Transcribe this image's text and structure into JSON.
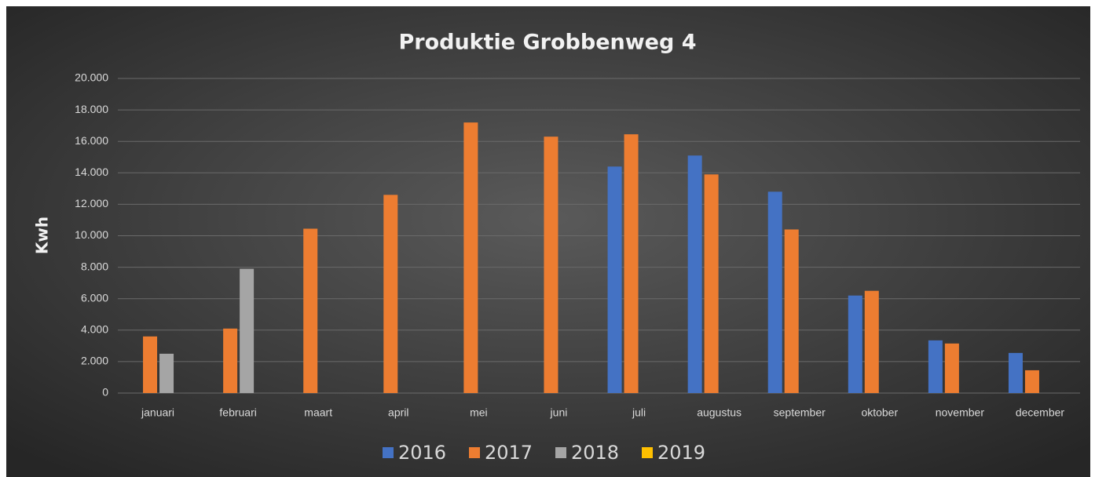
{
  "chart_data": {
    "type": "bar",
    "title": "Produktie Grobbenweg 4",
    "y_label": "Kwh",
    "categories": [
      "januari",
      "februari",
      "maart",
      "april",
      "mei",
      "juni",
      "juli",
      "augustus",
      "september",
      "oktober",
      "november",
      "december"
    ],
    "series": [
      {
        "name": "2016",
        "color": "#4472c4",
        "values": [
          null,
          null,
          null,
          null,
          null,
          null,
          14400,
          15100,
          12800,
          6200,
          3350,
          2550
        ]
      },
      {
        "name": "2017",
        "color": "#ed7d31",
        "values": [
          3600,
          4100,
          10450,
          12600,
          17200,
          16300,
          16450,
          13900,
          10400,
          6500,
          3150,
          1450
        ]
      },
      {
        "name": "2018",
        "color": "#a5a5a5",
        "values": [
          2500,
          7900,
          null,
          null,
          null,
          null,
          null,
          null,
          null,
          null,
          null,
          null
        ]
      },
      {
        "name": "2019",
        "color": "#ffc000",
        "values": [
          null,
          null,
          null,
          null,
          null,
          null,
          null,
          null,
          null,
          null,
          null,
          null
        ]
      }
    ],
    "ylim": [
      0,
      20000
    ],
    "yticks": [
      0,
      {
        "value": 2000,
        "label": "2.000"
      },
      {
        "value": 4000,
        "label": "4.000"
      },
      {
        "value": 6000,
        "label": "6.000"
      },
      {
        "value": 8000,
        "label": "8.000"
      },
      {
        "value": 10000,
        "label": "10.000"
      },
      {
        "value": 12000,
        "label": "12.000"
      },
      {
        "value": 14000,
        "label": "14.000"
      },
      {
        "value": 16000,
        "label": "16.000"
      },
      {
        "value": 18000,
        "label": "18.000"
      },
      {
        "value": 20000,
        "label": "20.000"
      }
    ],
    "grid": true,
    "legend": "bottom"
  }
}
